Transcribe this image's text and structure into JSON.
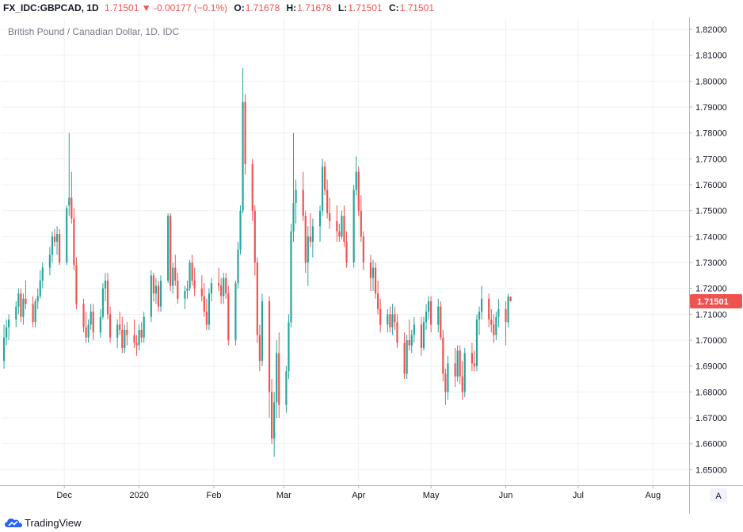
{
  "header": {
    "symbol": "FX_IDC:GBPCAD, 1D",
    "last": "1.71501",
    "arrow": "▼",
    "change": "-0.00177 (−0.1%)",
    "o_label": "O:",
    "o_val": "1.71678",
    "h_label": "H:",
    "h_val": "1.71678",
    "l_label": "L:",
    "l_val": "1.71501",
    "c_label": "C:",
    "c_val": "1.71501"
  },
  "branding": {
    "logo_text": "TradingView"
  },
  "colors": {
    "up": "#26a69a",
    "down": "#ef5350",
    "grid": "#eef0f3",
    "axis_text": "#131722"
  },
  "chart_data": {
    "type": "candlestick",
    "title": "British Pound / Canadian Dollar, 1D, IDC",
    "ylim": [
      1.644,
      1.824
    ],
    "y_ticks": [
      "1.65000",
      "1.66000",
      "1.67000",
      "1.68000",
      "1.69000",
      "1.70000",
      "1.71000",
      "1.72000",
      "1.73000",
      "1.74000",
      "1.75000",
      "1.76000",
      "1.77000",
      "1.78000",
      "1.79000",
      "1.80000",
      "1.81000",
      "1.82000"
    ],
    "x_ticks": [
      {
        "label": "Dec",
        "date": "2019-12-01"
      },
      {
        "label": "2020",
        "date": "2020-01-01"
      },
      {
        "label": "Feb",
        "date": "2020-02-01"
      },
      {
        "label": "Mar",
        "date": "2020-03-01"
      },
      {
        "label": "Apr",
        "date": "2020-04-01"
      },
      {
        "label": "May",
        "date": "2020-05-01"
      },
      {
        "label": "Jun",
        "date": "2020-06-01"
      },
      {
        "label": "Jul",
        "date": "2020-07-01"
      },
      {
        "label": "Aug",
        "date": "2020-08-01"
      }
    ],
    "date_range": [
      "2019-11-05",
      "2020-08-16"
    ],
    "price_label": "1.71501",
    "scale_button": "A",
    "first_date": "2019-11-06",
    "ohlc": [
      [
        1.692,
        1.706,
        1.689,
        1.701
      ],
      [
        1.701,
        1.708,
        1.698,
        1.705
      ],
      [
        1.705,
        1.71,
        1.7,
        1.708
      ],
      [
        1.708,
        1.715,
        1.705,
        1.713
      ],
      [
        1.713,
        1.72,
        1.71,
        1.718
      ],
      [
        1.718,
        1.72,
        1.707,
        1.709
      ],
      [
        1.709,
        1.718,
        1.706,
        1.716
      ],
      [
        1.716,
        1.723,
        1.712,
        1.714
      ],
      [
        1.714,
        1.717,
        1.705,
        1.707
      ],
      [
        1.707,
        1.716,
        1.705,
        1.715
      ],
      [
        1.715,
        1.72,
        1.712,
        1.717
      ],
      [
        1.717,
        1.727,
        1.716,
        1.723
      ],
      [
        1.723,
        1.73,
        1.72,
        1.728
      ],
      [
        1.728,
        1.736,
        1.725,
        1.733
      ],
      [
        1.733,
        1.742,
        1.73,
        1.74
      ],
      [
        1.74,
        1.743,
        1.736,
        1.738
      ],
      [
        1.738,
        1.744,
        1.733,
        1.741
      ],
      [
        1.741,
        1.743,
        1.729,
        1.73
      ],
      [
        1.73,
        1.752,
        1.729,
        1.751
      ],
      [
        1.752,
        1.78,
        1.748,
        1.755
      ],
      [
        1.755,
        1.765,
        1.745,
        1.747
      ],
      [
        1.747,
        1.751,
        1.727,
        1.729
      ],
      [
        1.729,
        1.732,
        1.712,
        1.714
      ],
      [
        1.714,
        1.716,
        1.703,
        1.705
      ],
      [
        1.705,
        1.711,
        1.699,
        1.701
      ],
      [
        1.701,
        1.708,
        1.699,
        1.706
      ],
      [
        1.706,
        1.714,
        1.704,
        1.711
      ],
      [
        1.711,
        1.714,
        1.7,
        1.703
      ],
      [
        1.703,
        1.712,
        1.701,
        1.709
      ],
      [
        1.709,
        1.722,
        1.708,
        1.72
      ],
      [
        1.72,
        1.726,
        1.715,
        1.723
      ],
      [
        1.723,
        1.726,
        1.708,
        1.71
      ],
      [
        1.71,
        1.713,
        1.699,
        1.701
      ],
      [
        1.701,
        1.708,
        1.697,
        1.706
      ],
      [
        1.706,
        1.711,
        1.702,
        1.704
      ],
      [
        1.704,
        1.709,
        1.695,
        1.697
      ],
      [
        1.697,
        1.706,
        1.695,
        1.704
      ],
      [
        1.704,
        1.707,
        1.698,
        1.702
      ],
      [
        1.702,
        1.708,
        1.697,
        1.699
      ],
      [
        1.699,
        1.702,
        1.694,
        1.698
      ],
      [
        1.698,
        1.706,
        1.696,
        1.704
      ],
      [
        1.704,
        1.707,
        1.699,
        1.701
      ],
      [
        1.701,
        1.711,
        1.699,
        1.709
      ],
      [
        1.709,
        1.727,
        1.707,
        1.725
      ],
      [
        1.725,
        1.726,
        1.715,
        1.718
      ],
      [
        1.718,
        1.724,
        1.714,
        1.721
      ],
      [
        1.721,
        1.723,
        1.711,
        1.713
      ],
      [
        1.713,
        1.725,
        1.711,
        1.723
      ],
      [
        1.723,
        1.749,
        1.722,
        1.748
      ],
      [
        1.748,
        1.749,
        1.719,
        1.721
      ],
      [
        1.721,
        1.73,
        1.718,
        1.728
      ],
      [
        1.728,
        1.733,
        1.721,
        1.723
      ],
      [
        1.723,
        1.726,
        1.714,
        1.716
      ],
      [
        1.716,
        1.721,
        1.712,
        1.719
      ],
      [
        1.719,
        1.723,
        1.716,
        1.72
      ],
      [
        1.72,
        1.731,
        1.719,
        1.73
      ],
      [
        1.73,
        1.733,
        1.721,
        1.723
      ],
      [
        1.723,
        1.728,
        1.717,
        1.72
      ],
      [
        1.72,
        1.725,
        1.715,
        1.717
      ],
      [
        1.717,
        1.722,
        1.709,
        1.711
      ],
      [
        1.711,
        1.716,
        1.704,
        1.706
      ],
      [
        1.706,
        1.72,
        1.704,
        1.718
      ],
      [
        1.718,
        1.724,
        1.715,
        1.722
      ],
      [
        1.722,
        1.728,
        1.719,
        1.721
      ],
      [
        1.721,
        1.724,
        1.714,
        1.717
      ],
      [
        1.717,
        1.726,
        1.714,
        1.724
      ],
      [
        1.724,
        1.726,
        1.716,
        1.718
      ],
      [
        1.718,
        1.721,
        1.698,
        1.7
      ],
      [
        1.7,
        1.723,
        1.698,
        1.722
      ],
      [
        1.722,
        1.738,
        1.72,
        1.735
      ],
      [
        1.735,
        1.752,
        1.733,
        1.75
      ],
      [
        1.75,
        1.805,
        1.749,
        1.792
      ],
      [
        1.792,
        1.795,
        1.764,
        1.768
      ],
      [
        1.768,
        1.77,
        1.746,
        1.75
      ],
      [
        1.75,
        1.752,
        1.725,
        1.73
      ],
      [
        1.73,
        1.732,
        1.699,
        1.702
      ],
      [
        1.702,
        1.706,
        1.688,
        1.692
      ],
      [
        1.692,
        1.718,
        1.69,
        1.715
      ],
      [
        1.715,
        1.717,
        1.67,
        1.68
      ],
      [
        1.68,
        1.685,
        1.66,
        1.662
      ],
      [
        1.662,
        1.68,
        1.655,
        1.676
      ],
      [
        1.676,
        1.7,
        1.67,
        1.695
      ],
      [
        1.695,
        1.703,
        1.67,
        1.675
      ],
      [
        1.675,
        1.69,
        1.672,
        1.688
      ],
      [
        1.688,
        1.71,
        1.685,
        1.707
      ],
      [
        1.707,
        1.745,
        1.705,
        1.742
      ],
      [
        1.742,
        1.78,
        1.738,
        1.753
      ],
      [
        1.753,
        1.762,
        1.745,
        1.758
      ],
      [
        1.758,
        1.765,
        1.746,
        1.748
      ],
      [
        1.748,
        1.75,
        1.726,
        1.73
      ],
      [
        1.73,
        1.744,
        1.721,
        1.74
      ],
      [
        1.74,
        1.749,
        1.736,
        1.738
      ],
      [
        1.738,
        1.747,
        1.732,
        1.744
      ],
      [
        1.744,
        1.752,
        1.738,
        1.75
      ],
      [
        1.75,
        1.77,
        1.748,
        1.767
      ],
      [
        1.767,
        1.769,
        1.756,
        1.758
      ],
      [
        1.758,
        1.762,
        1.747,
        1.749
      ],
      [
        1.749,
        1.755,
        1.743,
        1.746
      ],
      [
        1.746,
        1.752,
        1.738,
        1.742
      ],
      [
        1.742,
        1.745,
        1.738,
        1.74
      ],
      [
        1.74,
        1.75,
        1.739,
        1.748
      ],
      [
        1.748,
        1.752,
        1.736,
        1.738
      ],
      [
        1.738,
        1.742,
        1.728,
        1.73
      ],
      [
        1.73,
        1.76,
        1.728,
        1.758
      ],
      [
        1.758,
        1.771,
        1.756,
        1.765
      ],
      [
        1.765,
        1.767,
        1.748,
        1.75
      ],
      [
        1.75,
        1.756,
        1.738,
        1.74
      ],
      [
        1.74,
        1.742,
        1.727,
        1.73
      ],
      [
        1.73,
        1.733,
        1.719,
        1.724
      ],
      [
        1.724,
        1.731,
        1.719,
        1.728
      ],
      [
        1.728,
        1.73,
        1.716,
        1.718
      ],
      [
        1.718,
        1.723,
        1.71,
        1.712
      ],
      [
        1.712,
        1.716,
        1.703,
        1.706
      ],
      [
        1.706,
        1.712,
        1.703,
        1.71
      ],
      [
        1.71,
        1.713,
        1.703,
        1.705
      ],
      [
        1.705,
        1.714,
        1.702,
        1.71
      ],
      [
        1.71,
        1.713,
        1.704,
        1.707
      ],
      [
        1.707,
        1.71,
        1.697,
        1.699
      ],
      [
        1.699,
        1.703,
        1.685,
        1.687
      ],
      [
        1.687,
        1.702,
        1.685,
        1.7
      ],
      [
        1.7,
        1.708,
        1.696,
        1.698
      ],
      [
        1.698,
        1.704,
        1.695,
        1.702
      ],
      [
        1.702,
        1.709,
        1.699,
        1.706
      ],
      [
        1.706,
        1.709,
        1.694,
        1.697
      ],
      [
        1.697,
        1.709,
        1.696,
        1.707
      ],
      [
        1.707,
        1.714,
        1.704,
        1.711
      ],
      [
        1.711,
        1.717,
        1.708,
        1.715
      ],
      [
        1.715,
        1.717,
        1.703,
        1.706
      ],
      [
        1.706,
        1.716,
        1.703,
        1.713
      ],
      [
        1.713,
        1.715,
        1.7,
        1.701
      ],
      [
        1.701,
        1.704,
        1.684,
        1.687
      ],
      [
        1.687,
        1.689,
        1.675,
        1.68
      ],
      [
        1.68,
        1.694,
        1.677,
        1.691
      ],
      [
        1.691,
        1.697,
        1.682,
        1.686
      ],
      [
        1.686,
        1.698,
        1.684,
        1.696
      ],
      [
        1.696,
        1.698,
        1.683,
        1.686
      ],
      [
        1.686,
        1.692,
        1.677,
        1.68
      ],
      [
        1.68,
        1.697,
        1.678,
        1.695
      ],
      [
        1.695,
        1.699,
        1.688,
        1.691
      ],
      [
        1.691,
        1.696,
        1.688,
        1.69
      ],
      [
        1.69,
        1.71,
        1.688,
        1.708
      ],
      [
        1.708,
        1.713,
        1.702,
        1.711
      ],
      [
        1.711,
        1.721,
        1.708,
        1.716
      ],
      [
        1.716,
        1.718,
        1.705,
        1.708
      ],
      [
        1.708,
        1.712,
        1.703,
        1.706
      ],
      [
        1.706,
        1.71,
        1.699,
        1.702
      ],
      [
        1.702,
        1.711,
        1.7,
        1.709
      ],
      [
        1.709,
        1.716,
        1.705,
        1.712
      ],
      [
        1.712,
        1.715,
        1.698,
        1.707
      ],
      [
        1.707,
        1.718,
        1.705,
        1.7168
      ],
      [
        1.7168,
        1.7168,
        1.715,
        1.715
      ]
    ]
  }
}
